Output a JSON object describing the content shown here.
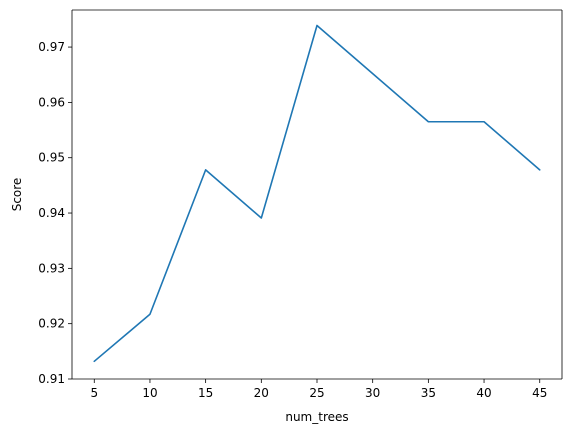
{
  "chart_data": {
    "type": "line",
    "title": "",
    "xlabel": "num_trees",
    "ylabel": "Score",
    "xlim": [
      3,
      47
    ],
    "ylim": [
      0.91,
      0.9767
    ],
    "xticks": [
      5,
      10,
      15,
      20,
      25,
      30,
      35,
      40,
      45
    ],
    "xtick_labels": [
      "5",
      "10",
      "15",
      "20",
      "25",
      "30",
      "35",
      "40",
      "45"
    ],
    "yticks": [
      0.91,
      0.92,
      0.93,
      0.94,
      0.95,
      0.96,
      0.97
    ],
    "ytick_labels": [
      "0.91",
      "0.92",
      "0.93",
      "0.94",
      "0.95",
      "0.96",
      "0.97"
    ],
    "grid": false,
    "series": [
      {
        "color": "#1f77b4",
        "x": [
          5,
          10,
          15,
          20,
          25,
          30,
          35,
          40,
          45
        ],
        "y": [
          0.9132,
          0.9217,
          0.9478,
          0.9391,
          0.9739,
          0.9652,
          0.9565,
          0.9565,
          0.9478
        ]
      }
    ]
  }
}
